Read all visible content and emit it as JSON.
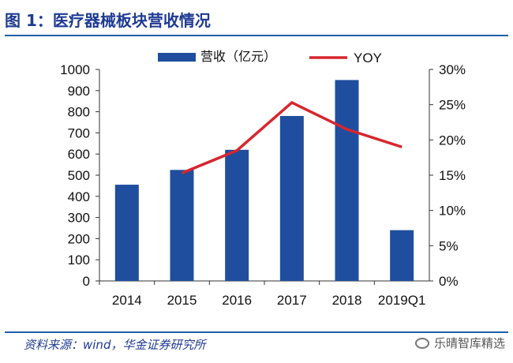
{
  "header": {
    "title": "图 1：医疗器械板块营收情况"
  },
  "footer": {
    "source": "资料来源：wind，华金证券研究所",
    "watermark": "乐晴智库精选"
  },
  "colors": {
    "bar": "#1f4e9e",
    "line": "#d7262e",
    "title": "#1f3a93",
    "rule": "#1f5fa8",
    "axis": "#333333"
  },
  "chart_data": {
    "type": "bar",
    "title": "",
    "categories": [
      "2014",
      "2015",
      "2016",
      "2017",
      "2018",
      "2019Q1"
    ],
    "series": [
      {
        "name": "营收（亿元）",
        "type": "bar",
        "axis": "left",
        "values": [
          455,
          525,
          620,
          780,
          950,
          240
        ]
      },
      {
        "name": "YOY",
        "type": "line",
        "axis": "right",
        "values": [
          null,
          15.3,
          18.5,
          25.3,
          21.5,
          19.0
        ]
      }
    ],
    "y_left": {
      "ylim": [
        0,
        1000
      ],
      "ticks": [
        "0",
        "100",
        "200",
        "300",
        "400",
        "500",
        "600",
        "700",
        "800",
        "900",
        "1000"
      ]
    },
    "y_right": {
      "ylim": [
        0,
        30
      ],
      "ticks": [
        "0%",
        "5%",
        "10%",
        "15%",
        "20%",
        "25%",
        "30%"
      ]
    },
    "legend": {
      "placement": "top-center",
      "entries": [
        "营收（亿元）",
        "YOY"
      ]
    },
    "grid": false
  }
}
